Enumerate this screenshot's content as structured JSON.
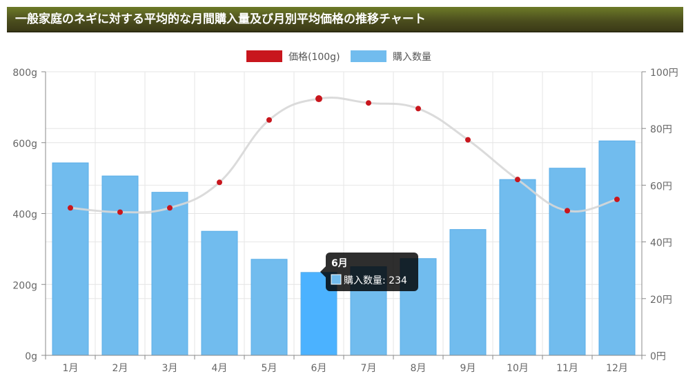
{
  "header": {
    "title": "一般家庭のネギに対する平均的な月間購入量及び月別平均価格の推移チャート"
  },
  "colors": {
    "bar": "#71bcee",
    "bar_hover": "#4bb2ff",
    "price": "#c8161d",
    "curve": "#d7d7d7"
  },
  "tooltip": {
    "title": "6月",
    "label": "購入数量: 234"
  },
  "chart_data": {
    "type": "bar",
    "categories": [
      "1月",
      "2月",
      "3月",
      "4月",
      "5月",
      "6月",
      "7月",
      "8月",
      "9月",
      "10月",
      "11月",
      "12月"
    ],
    "series": [
      {
        "name": "購入数量",
        "type": "bar",
        "axis": "left",
        "values": [
          543,
          506,
          460,
          350,
          271,
          234,
          250,
          273,
          355,
          496,
          528,
          605
        ]
      },
      {
        "name": "価格(100g)",
        "type": "line",
        "axis": "right",
        "values": [
          52,
          50.5,
          52,
          61,
          83,
          90.5,
          89,
          87,
          76,
          62,
          51,
          55
        ]
      }
    ],
    "y_left": {
      "min": 0,
      "max": 800,
      "ticks": [
        "0g",
        "200g",
        "400g",
        "600g",
        "800g"
      ]
    },
    "y_right": {
      "min": 0,
      "max": 100,
      "ticks": [
        "0円",
        "20円",
        "40円",
        "60円",
        "80円",
        "100円"
      ]
    },
    "legend": [
      "価格(100g)",
      "購入数量"
    ],
    "legend_position": "top",
    "grid": true
  }
}
